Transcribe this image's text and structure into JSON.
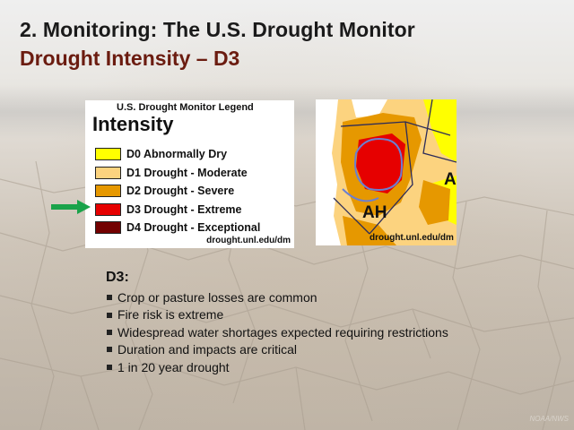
{
  "slide": {
    "title_line1": "2. Monitoring:  The U.S. Drought Monitor",
    "title_line2": "Drought Intensity – D3",
    "credit": "NOAA/NWS"
  },
  "legend": {
    "title": "U.S. Drought Monitor Legend",
    "heading": "Intensity",
    "items": [
      {
        "label": "D0 Abnormally Dry",
        "color": "#ffff00"
      },
      {
        "label": "D1 Drought - Moderate",
        "color": "#fcd37f"
      },
      {
        "label": "D2 Drought - Severe",
        "color": "#e69800"
      },
      {
        "label": "D3 Drought - Extreme",
        "color": "#e60000"
      },
      {
        "label": "D4 Drought - Exceptional",
        "color": "#730000"
      }
    ],
    "url": "drought.unl.edu/dm",
    "highlighted_item": "D3 Drought - Extreme",
    "arrow_color": "#1aa34a"
  },
  "map": {
    "label_main": "AH",
    "label_edge": "A",
    "url": "drought.unl.edu/dm"
  },
  "content": {
    "heading": "D3:",
    "bullets": [
      "Crop or pasture losses are common",
      "Fire risk is extreme",
      "Widespread water shortages expected requiring restrictions",
      "Duration and impacts are critical",
      "1 in 20 year drought"
    ]
  }
}
